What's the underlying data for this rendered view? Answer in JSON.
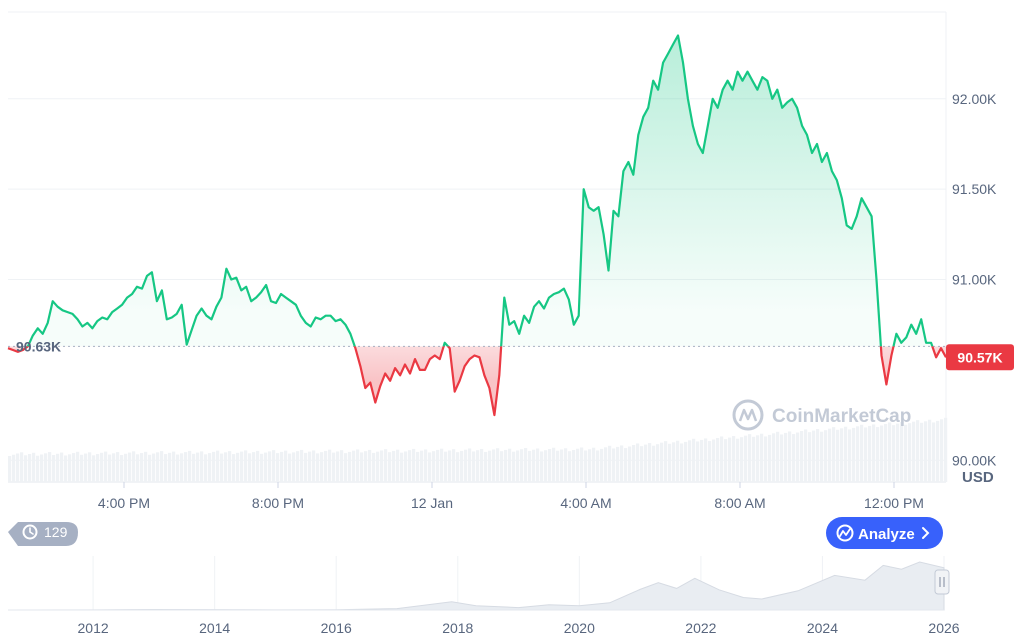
{
  "chart_data": {
    "type": "area",
    "currency_label": "USD",
    "y_ticks": [
      "90.00K",
      "91.00K",
      "91.50K",
      "92.00K"
    ],
    "y_tick_values": [
      90000,
      91000,
      91500,
      92000
    ],
    "ylim": [
      89880,
      92480
    ],
    "x_tick_labels": [
      "4:00 PM",
      "8:00 PM",
      "12 Jan",
      "4:00 AM",
      "8:00 AM",
      "12:00 PM"
    ],
    "reference": {
      "value": 90630,
      "label": "90.63K"
    },
    "last": {
      "value": 90570,
      "label": "90.57K"
    },
    "colors": {
      "up": "#16c784",
      "down": "#ea3943",
      "reference_line": "#a6b0c3",
      "badge": "#ea3943"
    },
    "price": [
      90620,
      90610,
      90600,
      90610,
      90630,
      90690,
      90730,
      90700,
      90760,
      90880,
      90850,
      90830,
      90820,
      90810,
      90780,
      90740,
      90760,
      90730,
      90770,
      90790,
      90780,
      90820,
      90840,
      90860,
      90900,
      90920,
      90960,
      90950,
      91020,
      91040,
      90880,
      90940,
      90780,
      90790,
      90810,
      90860,
      90640,
      90720,
      90800,
      90840,
      90800,
      90780,
      90850,
      90900,
      91060,
      91000,
      91010,
      90940,
      90960,
      90880,
      90900,
      90930,
      90970,
      90880,
      90870,
      90920,
      90900,
      90880,
      90860,
      90800,
      90760,
      90740,
      90790,
      90780,
      90800,
      90800,
      90770,
      90780,
      90750,
      90700,
      90620,
      90520,
      90400,
      90430,
      90320,
      90410,
      90480,
      90440,
      90510,
      90470,
      90530,
      90480,
      90560,
      90500,
      90500,
      90560,
      90580,
      90560,
      90650,
      90620,
      90380,
      90440,
      90520,
      90560,
      90580,
      90570,
      90470,
      90400,
      90250,
      90470,
      90900,
      90750,
      90770,
      90700,
      90800,
      90760,
      90850,
      90880,
      90840,
      90900,
      90920,
      90930,
      90950,
      90890,
      90750,
      90800,
      91500,
      91400,
      91380,
      91400,
      91250,
      91050,
      91380,
      91350,
      91600,
      91650,
      91580,
      91800,
      91900,
      91950,
      92100,
      92050,
      92200,
      92250,
      92300,
      92350,
      92200,
      92000,
      91850,
      91750,
      91700,
      91850,
      92000,
      91950,
      92050,
      92100,
      92050,
      92150,
      92100,
      92150,
      92100,
      92050,
      92120,
      92100,
      92000,
      92050,
      91950,
      91980,
      92000,
      91950,
      91850,
      91800,
      91700,
      91750,
      91650,
      91700,
      91600,
      91550,
      91450,
      91300,
      91280,
      91350,
      91450,
      91400,
      91350,
      91000,
      90580,
      90420,
      90580,
      90700,
      90650,
      90680,
      90750,
      90700,
      90780,
      90650,
      90650,
      90570,
      90620,
      90570
    ]
  },
  "history_badge": {
    "count": "129"
  },
  "analyze_button": {
    "label": "Analyze"
  },
  "watermark": {
    "text": "CoinMarketCap"
  },
  "navigator": {
    "year_labels": [
      "2012",
      "2014",
      "2016",
      "2018",
      "2020",
      "2022",
      "2024",
      "2026"
    ],
    "year_values": [
      2012,
      2014,
      2016,
      2018,
      2020,
      2022,
      2024,
      2026
    ],
    "range": [
      2010.6,
      2026.0
    ],
    "history": [
      [
        2010.6,
        0
      ],
      [
        2012,
        0.002
      ],
      [
        2013,
        0.01
      ],
      [
        2014,
        0.008
      ],
      [
        2015,
        0.003
      ],
      [
        2016,
        0.006
      ],
      [
        2017,
        0.03
      ],
      [
        2017.9,
        0.17
      ],
      [
        2018.3,
        0.09
      ],
      [
        2019,
        0.05
      ],
      [
        2019.5,
        0.11
      ],
      [
        2020,
        0.09
      ],
      [
        2020.5,
        0.15
      ],
      [
        2021.0,
        0.43
      ],
      [
        2021.3,
        0.57
      ],
      [
        2021.6,
        0.45
      ],
      [
        2021.9,
        0.66
      ],
      [
        2022.3,
        0.42
      ],
      [
        2022.7,
        0.26
      ],
      [
        2023.0,
        0.23
      ],
      [
        2023.6,
        0.4
      ],
      [
        2024.2,
        0.72
      ],
      [
        2024.7,
        0.62
      ],
      [
        2025.0,
        0.93
      ],
      [
        2025.3,
        0.85
      ],
      [
        2025.6,
        1.0
      ],
      [
        2026.0,
        0.88
      ]
    ]
  }
}
